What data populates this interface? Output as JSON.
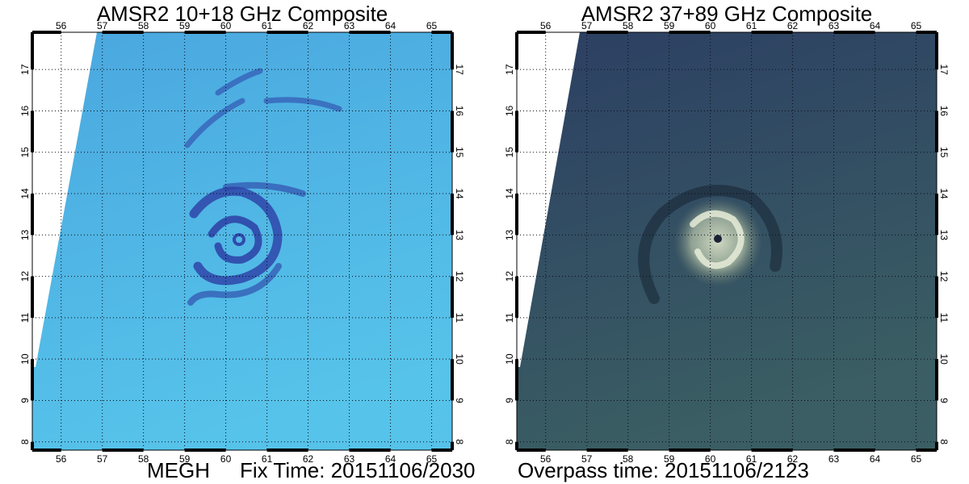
{
  "panels": [
    {
      "id": "left",
      "title": "AMSR2 10+18 GHz Composite",
      "style": {
        "ocean_top": "#4aa7df",
        "ocean_bottom": "#56c3ea",
        "band": "#2c3fa5",
        "grid": "#0a0a14"
      }
    },
    {
      "id": "right",
      "title": "AMSR2 37+89 GHz Composite",
      "style": {
        "ocean_top": "#2c3f63",
        "ocean_bottom": "#3a5e63",
        "band": "#101a28",
        "grid": "#0a0a14"
      }
    }
  ],
  "axes": {
    "lon_ticks": [
      "56",
      "57",
      "58",
      "59",
      "60",
      "61",
      "62",
      "63",
      "64",
      "65"
    ],
    "lat_ticks": [
      "8",
      "9",
      "10",
      "11",
      "12",
      "13",
      "14",
      "15",
      "16",
      "17"
    ],
    "lon_range": [
      55.3,
      65.5
    ],
    "lat_range": [
      7.8,
      17.9
    ]
  },
  "storm": {
    "lon": 60.2,
    "lat": 12.8
  },
  "footer": {
    "storm_name": "MEGH",
    "fix_time": "Fix Time: 20151106/2030",
    "overpass_time": "Overpass time: 20151106/2123"
  }
}
